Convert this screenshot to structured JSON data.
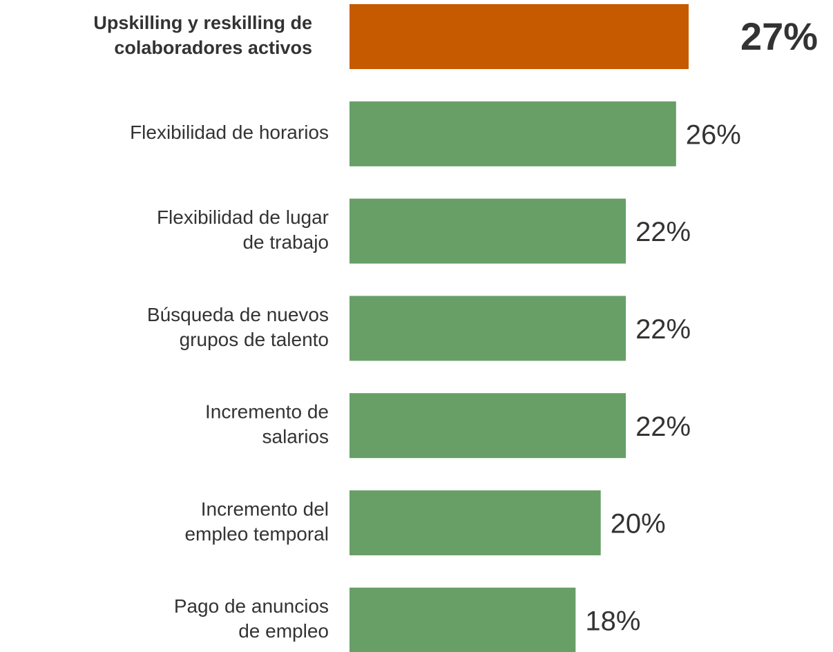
{
  "chart_data": {
    "type": "barh",
    "categories": [
      [
        "Upskilling y reskilling de",
        "colaboradores activos"
      ],
      [
        "Flexibilidad de horarios"
      ],
      [
        "Flexibilidad de lugar",
        "de trabajo"
      ],
      [
        "Búsqueda de nuevos",
        "grupos de talento"
      ],
      [
        "Incremento de",
        "salarios"
      ],
      [
        "Incremento del",
        "empleo temporal"
      ],
      [
        "Pago de anuncios",
        "de empleo"
      ]
    ],
    "values": [
      27,
      26,
      22,
      22,
      22,
      20,
      18
    ],
    "value_labels": [
      "27%",
      "26%",
      "22%",
      "22%",
      "22%",
      "20%",
      "18%"
    ],
    "colors": [
      "#c55a00",
      "#679f66",
      "#679f66",
      "#679f66",
      "#679f66",
      "#679f66",
      "#679f66"
    ]
  }
}
